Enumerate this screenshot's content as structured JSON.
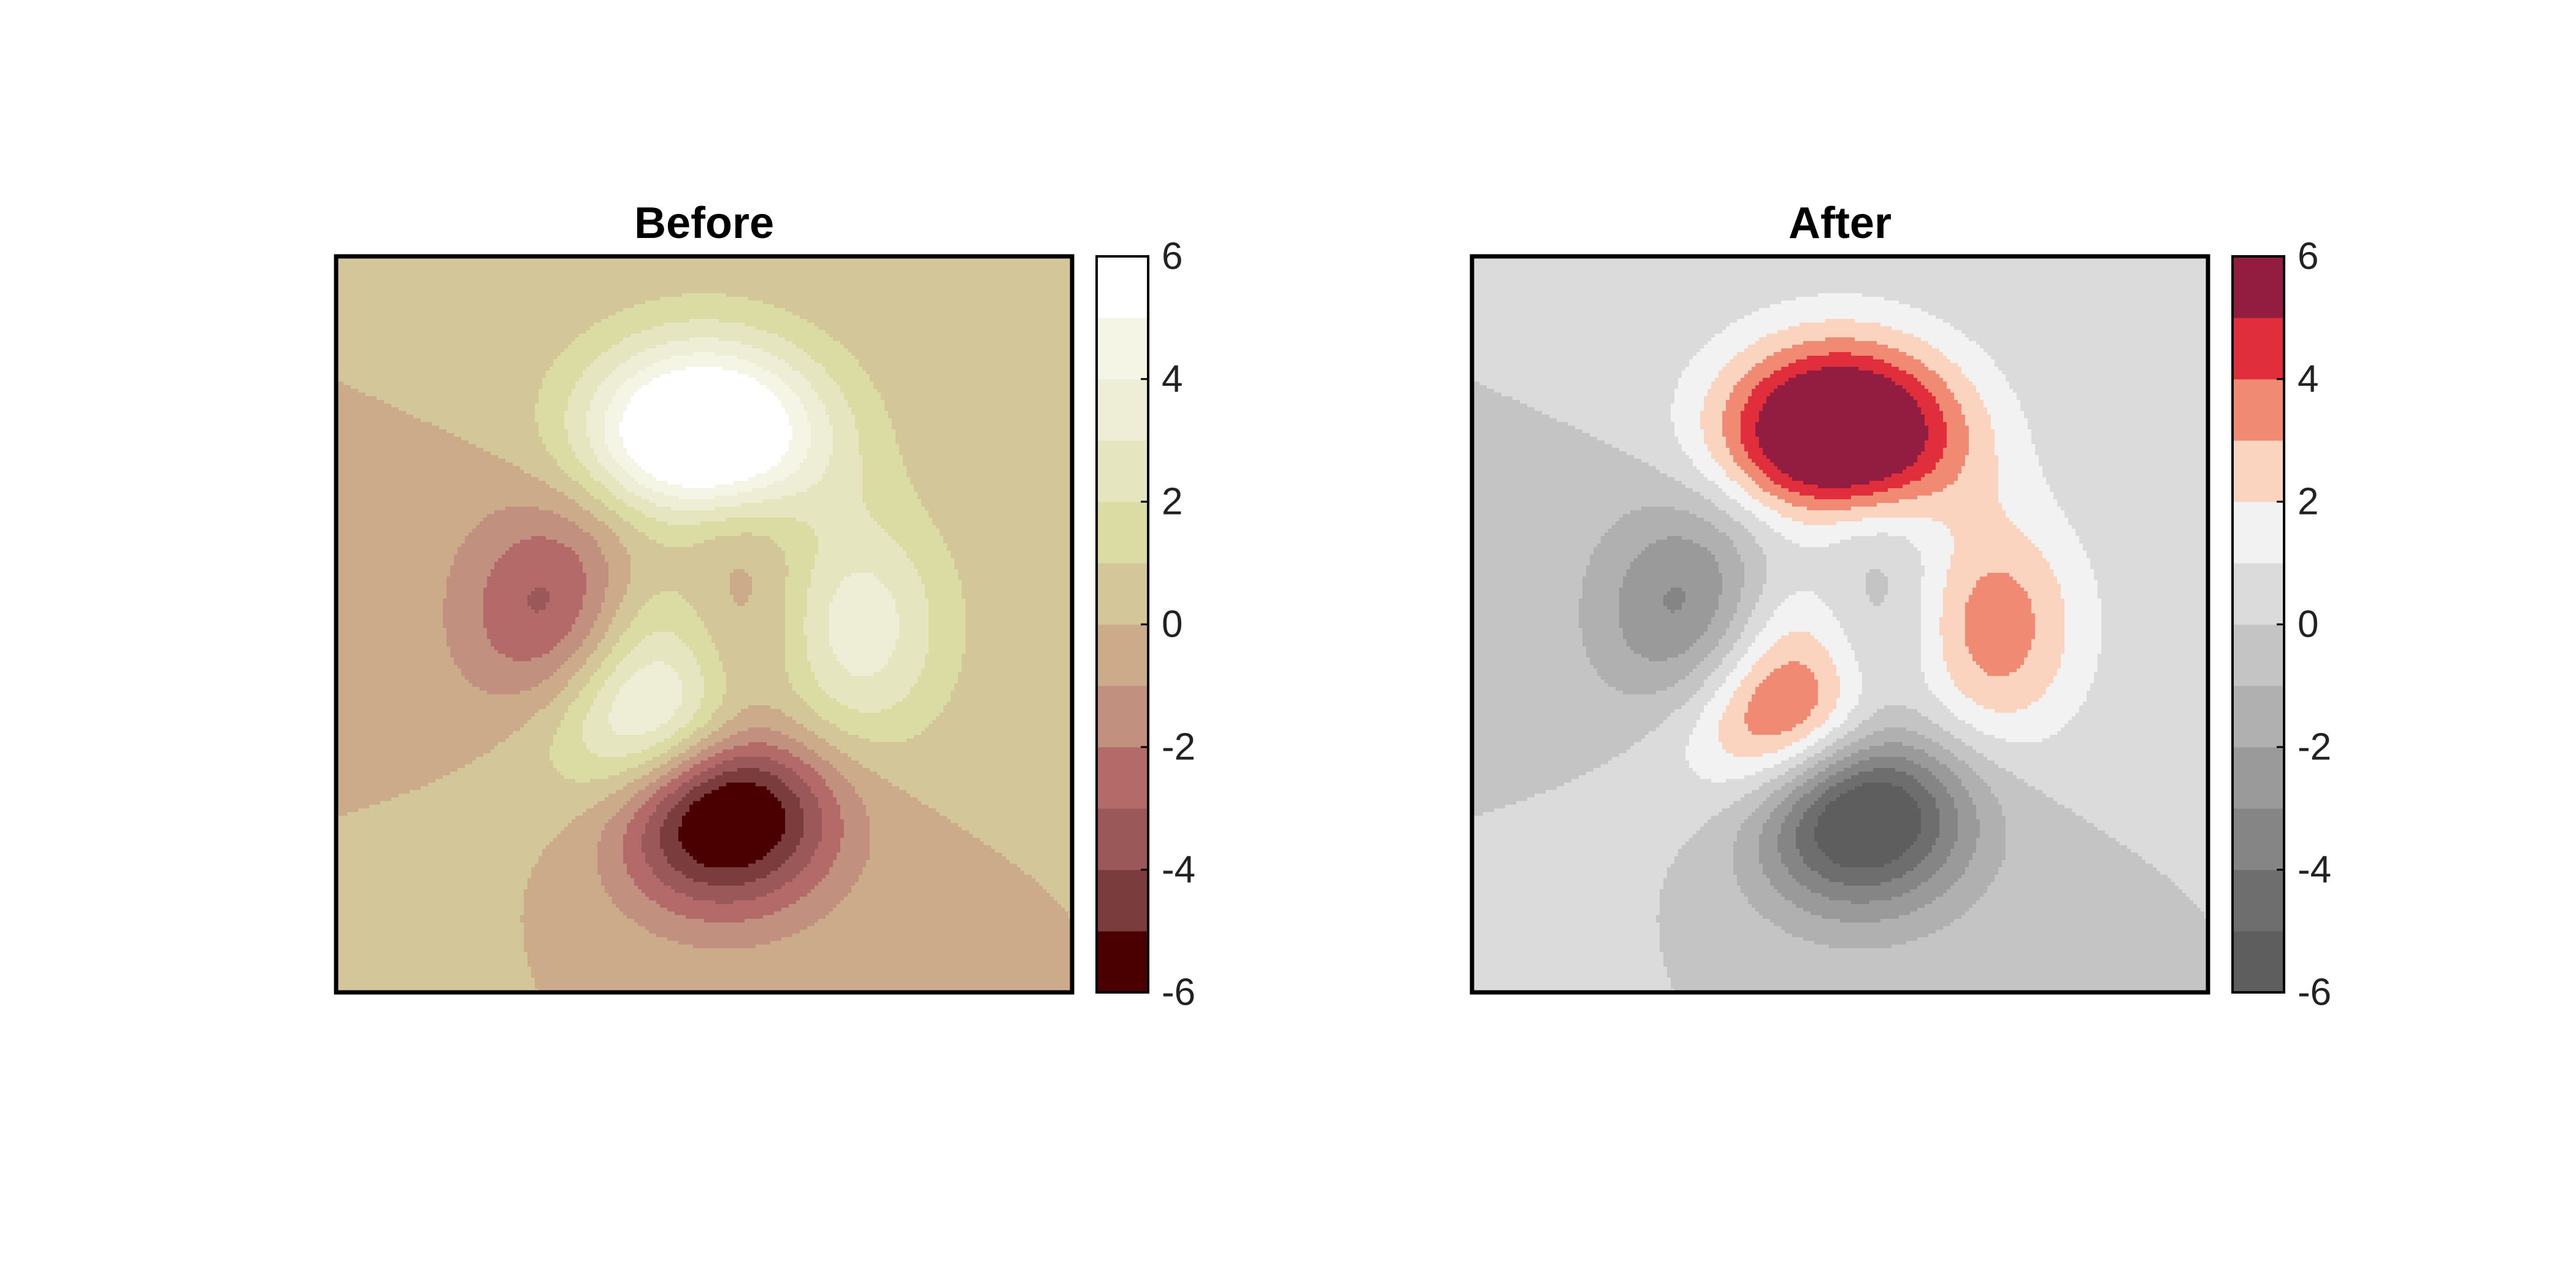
{
  "chart_data": [
    {
      "type": "filled-contour",
      "title": "Before",
      "function": "peaks",
      "colorbar": {
        "limits": [
          -6,
          6
        ],
        "ticks": [
          6,
          4,
          2,
          0,
          -2,
          -4,
          -6
        ],
        "tick_labels": [
          "6",
          "4",
          "2",
          "0",
          "-2",
          "-4",
          "-6"
        ],
        "levels": [
          -6,
          -5,
          -4,
          -3,
          -2,
          -1,
          0,
          1,
          2,
          3,
          4,
          5,
          6
        ],
        "colors": [
          "#4a0000",
          "#7a3c3c",
          "#9a5858",
          "#b56a6a",
          "#c2907e",
          "#cbab8a",
          "#d3c79a",
          "#dbdca4",
          "#e5e6c0",
          "#eeeed6",
          "#f5f5e6",
          "#ffffff"
        ]
      },
      "grid": false
    },
    {
      "type": "filled-contour",
      "title": "After",
      "function": "peaks",
      "colorbar": {
        "limits": [
          -6,
          6
        ],
        "ticks": [
          6,
          4,
          2,
          0,
          -2,
          -4,
          -6
        ],
        "tick_labels": [
          "6",
          "4",
          "2",
          "0",
          "-2",
          "-4",
          "-6"
        ],
        "levels": [
          -6,
          -5,
          -4,
          -3,
          -2,
          -1,
          0,
          1,
          2,
          3,
          4,
          5,
          6
        ],
        "colors": [
          "#5e5e5e",
          "#6e6e6e",
          "#858585",
          "#9a9a9a",
          "#b0b0b0",
          "#c4c4c4",
          "#dbdbdb",
          "#f2f2f2",
          "#fbd4c0",
          "#f08a72",
          "#e02e3c",
          "#931d40"
        ]
      },
      "grid": false
    }
  ]
}
